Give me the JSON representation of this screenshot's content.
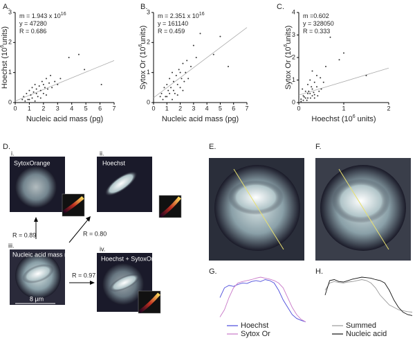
{
  "chart_data": [
    {
      "type": "scatter",
      "label": "A.",
      "xlim": [
        0,
        7
      ],
      "ylim": [
        0,
        3
      ],
      "xticks": [
        0,
        1,
        2,
        3,
        4,
        5,
        6,
        7
      ],
      "yticks": [
        0,
        1,
        2,
        3
      ],
      "xlabel": {
        "text": "Nucleic acid mass (pg)"
      },
      "ylabel": {
        "text": "Hoechst (10",
        "sup": "6",
        "tail": "units)"
      },
      "annotations": [
        {
          "text": "m = 1.943 x 10",
          "sup": "16"
        },
        {
          "text": "y = 47280"
        },
        {
          "text": "R = 0.686"
        }
      ],
      "color": "#333333",
      "fit_line": {
        "x": [
          0,
          7
        ],
        "y": [
          0.05,
          1.4
        ]
      },
      "x": [
        0.6,
        0.8,
        0.9,
        1.0,
        1.1,
        1.2,
        1.2,
        1.3,
        1.4,
        1.5,
        1.5,
        1.6,
        1.7,
        1.8,
        1.9,
        2.0,
        2.0,
        2.1,
        2.2,
        2.3,
        2.4,
        2.5,
        2.6,
        2.8,
        3.0,
        3.2,
        0.7,
        1.0,
        1.4,
        1.8,
        2.2,
        3.8,
        4.5,
        4.9,
        6.1,
        0.5
      ],
      "y": [
        0.2,
        0.3,
        0.1,
        0.4,
        0.25,
        0.5,
        0.15,
        0.35,
        0.6,
        0.3,
        0.45,
        0.2,
        0.55,
        0.4,
        0.7,
        0.3,
        0.6,
        0.5,
        0.8,
        0.45,
        0.65,
        0.9,
        0.5,
        0.7,
        0.6,
        0.8,
        0.05,
        0.1,
        0.05,
        0.15,
        0.25,
        1.5,
        1.6,
        1.1,
        0.6,
        0.1
      ]
    },
    {
      "type": "scatter",
      "label": "B.",
      "xlim": [
        0,
        7
      ],
      "ylim": [
        0,
        3
      ],
      "xticks": [
        0,
        1,
        2,
        3,
        4,
        5,
        6,
        7
      ],
      "yticks": [
        0,
        1,
        2,
        3
      ],
      "xlabel": {
        "text": "Nucleic acid mass (pg)"
      },
      "ylabel": {
        "text": "Sytox Or (10",
        "sup": "6",
        "tail": "units)"
      },
      "annotations": [
        {
          "text": "m = 2.351 x 10",
          "sup": "16"
        },
        {
          "text": "y = 161140"
        },
        {
          "text": "R = 0.459"
        }
      ],
      "color": "#333333",
      "fit_line": {
        "x": [
          0,
          7
        ],
        "y": [
          0.16,
          2.5
        ]
      },
      "x": [
        0.6,
        0.8,
        0.9,
        1.0,
        1.1,
        1.2,
        1.2,
        1.3,
        1.4,
        1.5,
        1.5,
        1.6,
        1.7,
        1.8,
        1.9,
        2.0,
        2.0,
        2.1,
        2.2,
        2.3,
        2.4,
        2.5,
        2.6,
        2.8,
        3.0,
        3.2,
        0.7,
        1.0,
        1.4,
        1.8,
        2.2,
        3.5,
        4.5,
        5.0,
        5.6,
        0.5
      ],
      "y": [
        0.3,
        0.5,
        0.2,
        0.6,
        0.4,
        0.8,
        0.3,
        0.5,
        1.0,
        0.4,
        0.7,
        0.3,
        0.9,
        0.6,
        1.1,
        0.5,
        1.0,
        0.8,
        1.3,
        0.7,
        1.0,
        1.4,
        0.8,
        1.2,
        1.9,
        1.5,
        0.1,
        0.2,
        0.1,
        0.25,
        0.4,
        2.3,
        1.6,
        2.2,
        1.2,
        0.2
      ]
    },
    {
      "type": "scatter",
      "label": "C.",
      "xlim": [
        0,
        2
      ],
      "ylim": [
        0,
        4
      ],
      "xticks": [
        0,
        1,
        2
      ],
      "yticks": [
        0,
        1,
        2,
        3,
        4
      ],
      "xlabel": {
        "text": "Hoechst (10",
        "sup": "6",
        "tail": " units)"
      },
      "ylabel": {
        "text": "Sytox Or (10",
        "sup": "6",
        "tail": "units)"
      },
      "annotations": [
        {
          "text": "m =0.602"
        },
        {
          "text": "y = 328050"
        },
        {
          "text": "R = 0.333"
        }
      ],
      "color": "#333333",
      "fit_line": {
        "x": [
          0,
          2
        ],
        "y": [
          0.33,
          1.53
        ]
      },
      "x": [
        0.1,
        0.15,
        0.2,
        0.2,
        0.25,
        0.25,
        0.3,
        0.3,
        0.35,
        0.35,
        0.4,
        0.4,
        0.45,
        0.1,
        0.15,
        0.2,
        0.3,
        0.35,
        0.5,
        0.55,
        0.05,
        0.12,
        0.22,
        0.28,
        0.6,
        0.7,
        0.9,
        1.0,
        1.5,
        0.05,
        0.18,
        0.42,
        0.33,
        0.08,
        0.26,
        0.48
      ],
      "y": [
        0.3,
        0.5,
        0.2,
        0.8,
        0.4,
        1.0,
        0.3,
        0.6,
        0.9,
        0.2,
        0.7,
        1.2,
        0.5,
        0.1,
        0.2,
        0.4,
        1.4,
        0.35,
        0.6,
        0.9,
        0.15,
        0.25,
        0.5,
        0.7,
        1.6,
        2.9,
        1.9,
        2.2,
        1.2,
        0.05,
        0.1,
        0.3,
        0.45,
        0.6,
        0.2,
        1.1
      ]
    },
    {
      "type": "line",
      "label": "G.",
      "series": [
        {
          "name": "Hoechst",
          "color": "#4a4adb",
          "values": [
            0.55,
            0.75,
            0.8,
            0.78,
            0.82,
            0.85,
            0.84,
            0.88,
            0.9,
            0.88,
            0.92,
            0.9,
            0.85,
            0.7,
            0.5,
            0.35,
            0.2,
            0.12,
            0.08,
            0.05
          ]
        },
        {
          "name": "Sytox Or",
          "color": "#c878c8",
          "values": [
            0.15,
            0.3,
            0.55,
            0.75,
            0.85,
            0.88,
            0.9,
            0.92,
            0.95,
            0.97,
            0.95,
            0.93,
            0.9,
            0.85,
            0.75,
            0.55,
            0.35,
            0.2,
            0.1,
            0.05
          ]
        }
      ]
    },
    {
      "type": "line",
      "label": "H.",
      "series": [
        {
          "name": "Summed",
          "color": "#999999",
          "values": [
            0.7,
            0.85,
            0.88,
            0.86,
            0.85,
            0.87,
            0.88,
            0.9,
            0.92,
            0.9,
            0.85,
            0.75,
            0.6,
            0.5,
            0.4,
            0.35,
            0.3,
            0.28,
            0.26,
            0.25
          ]
        },
        {
          "name": "Nucleic acid",
          "color": "#111111",
          "values": [
            0.6,
            0.9,
            0.92,
            0.88,
            0.87,
            0.9,
            0.93,
            0.95,
            0.97,
            0.96,
            0.95,
            0.92,
            0.9,
            0.85,
            0.7,
            0.5,
            0.35,
            0.25,
            0.2,
            0.18
          ]
        }
      ]
    }
  ],
  "panel_d": {
    "label": "D.",
    "i": "i.",
    "i_title": "SytoxOrange",
    "ii": "ii.",
    "ii_title": "Hoechst",
    "iii": "iii.",
    "iii_title": "Nucleic acid mass map",
    "iv": "iv.",
    "iv_title": "Hoechst + SytoxOr",
    "r1": "R = 0.89",
    "r2": "R = 0.80",
    "r3": "R = 0.97",
    "scale": "8 µm"
  },
  "panel_e": {
    "label": "E."
  },
  "panel_f": {
    "label": "F."
  }
}
